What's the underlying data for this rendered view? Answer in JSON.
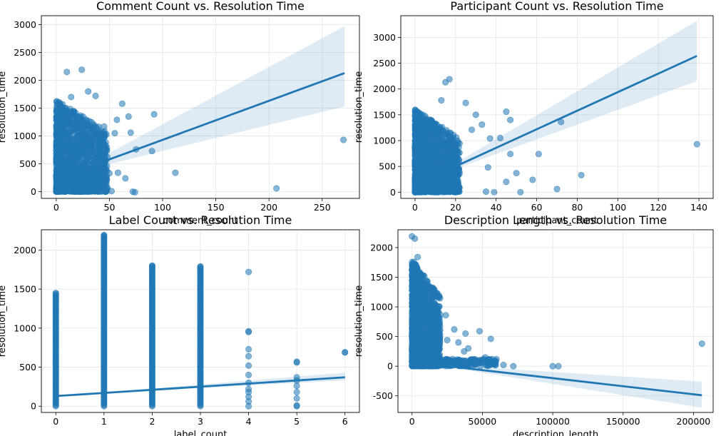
{
  "chart_data": [
    {
      "type": "scatter",
      "title": "Comment Count vs. Resolution Time",
      "xlabel": "comment_count",
      "ylabel": "resolution_time",
      "xlim": [
        -14,
        285
      ],
      "ylim": [
        -120,
        3160
      ],
      "xticks": [
        0,
        50,
        100,
        150,
        200,
        250
      ],
      "yticks": [
        0,
        500,
        1000,
        1500,
        2000,
        2500,
        3000
      ],
      "grid": true,
      "color": "#1f77b4",
      "cluster": {
        "x_max": 48,
        "y_max": 1650
      },
      "points": [
        [
          0,
          0
        ],
        [
          10,
          2150
        ],
        [
          24,
          2190
        ],
        [
          30,
          1800
        ],
        [
          37,
          1720
        ],
        [
          14,
          1700
        ],
        [
          62,
          1580
        ],
        [
          68,
          1350
        ],
        [
          57,
          1290
        ],
        [
          45,
          1170
        ],
        [
          40,
          970
        ],
        [
          55,
          1050
        ],
        [
          70,
          1060
        ],
        [
          92,
          1390
        ],
        [
          75,
          760
        ],
        [
          90,
          730
        ],
        [
          48,
          620
        ],
        [
          58,
          340
        ],
        [
          65,
          240
        ],
        [
          72,
          0
        ],
        [
          74,
          -10
        ],
        [
          112,
          340
        ],
        [
          207,
          60
        ],
        [
          270,
          930
        ],
        [
          50,
          330
        ],
        [
          52,
          10
        ],
        [
          44,
          20
        ]
      ],
      "regression": {
        "x": [
          0,
          271
        ],
        "y": [
          230,
          2130
        ],
        "ci_lower_end": 1530,
        "ci_upper_end": 2970
      }
    },
    {
      "type": "scatter",
      "title": "Participant Count vs. Resolution Time",
      "xlabel": "participant_count",
      "ylabel": "resolution_time",
      "xlim": [
        -7,
        147
      ],
      "ylim": [
        -120,
        3420
      ],
      "xticks": [
        0,
        20,
        40,
        60,
        80,
        100,
        120,
        140
      ],
      "yticks": [
        0,
        500,
        1000,
        1500,
        2000,
        2500,
        3000
      ],
      "grid": true,
      "color": "#1f77b4",
      "cluster": {
        "x_max": 22,
        "y_max": 1600
      },
      "points": [
        [
          0,
          0
        ],
        [
          15,
          2130
        ],
        [
          17,
          2190
        ],
        [
          13,
          1780
        ],
        [
          25,
          1730
        ],
        [
          30,
          1500
        ],
        [
          45,
          1560
        ],
        [
          47,
          1400
        ],
        [
          33,
          1310
        ],
        [
          28,
          1210
        ],
        [
          37,
          1040
        ],
        [
          42,
          1050
        ],
        [
          47,
          740
        ],
        [
          61,
          740
        ],
        [
          72,
          1360
        ],
        [
          70,
          60
        ],
        [
          82,
          330
        ],
        [
          139,
          930
        ],
        [
          50,
          370
        ],
        [
          52,
          0
        ],
        [
          58,
          240
        ],
        [
          45,
          200
        ],
        [
          36,
          480
        ],
        [
          39,
          0
        ],
        [
          35,
          10
        ]
      ],
      "regression": {
        "x": [
          0,
          139
        ],
        "y": [
          140,
          2640
        ],
        "ci_lower_end": 2150,
        "ci_upper_end": 3320
      }
    },
    {
      "type": "scatter",
      "title": "Label Count vs. Resolution Time",
      "xlabel": "label_count",
      "ylabel": "resolution_time",
      "xlim": [
        -0.3,
        6.3
      ],
      "ylim": [
        -80,
        2260
      ],
      "xticks": [
        0,
        1,
        2,
        3,
        4,
        5,
        6
      ],
      "yticks": [
        0,
        500,
        1000,
        1500,
        2000
      ],
      "grid": true,
      "color": "#1f77b4",
      "columns": [
        {
          "x": 0,
          "max": 1450
        },
        {
          "x": 1,
          "max": 2190
        },
        {
          "x": 2,
          "max": 1800
        },
        {
          "x": 3,
          "max": 1790
        },
        {
          "x": 4,
          "max": 1720,
          "sparse": [
            950,
            960,
            730,
            640,
            520,
            400,
            300,
            220,
            180,
            120,
            60,
            0
          ]
        },
        {
          "x": 5,
          "max": 570,
          "sparse": [
            560,
            370,
            330,
            260,
            180,
            100,
            10,
            0
          ]
        },
        {
          "x": 6,
          "max": 690,
          "sparse": [
            690
          ]
        }
      ],
      "regression": {
        "x": [
          0,
          6
        ],
        "y": [
          130,
          370
        ],
        "ci_lower_end": 330,
        "ci_upper_end": 430
      }
    },
    {
      "type": "scatter",
      "title": "Description Length vs. Resolution Time",
      "xlabel": "description_length",
      "ylabel": "resolution_time",
      "xlim": [
        -10000,
        214000
      ],
      "ylim": [
        -780,
        2300
      ],
      "xticks": [
        0,
        50000,
        100000,
        150000,
        200000
      ],
      "yticks": [
        -500,
        0,
        500,
        1000,
        1500,
        2000
      ],
      "grid": true,
      "color": "#1f77b4",
      "cluster": {
        "x_max": 20000,
        "y_max": 1800
      },
      "points": [
        [
          0,
          2190
        ],
        [
          2000,
          2150
        ],
        [
          4000,
          1840
        ],
        [
          7000,
          1500
        ],
        [
          9000,
          1300
        ],
        [
          12000,
          1150
        ],
        [
          15000,
          960
        ],
        [
          18000,
          1230
        ],
        [
          24000,
          860
        ],
        [
          30000,
          620
        ],
        [
          38000,
          550
        ],
        [
          48000,
          590
        ],
        [
          56000,
          460
        ],
        [
          20000,
          610
        ],
        [
          25000,
          440
        ],
        [
          33000,
          400
        ],
        [
          37000,
          250
        ],
        [
          44000,
          100
        ],
        [
          52000,
          150
        ],
        [
          60000,
          120
        ],
        [
          72000,
          0
        ],
        [
          100000,
          0
        ],
        [
          104000,
          0
        ],
        [
          206000,
          380
        ],
        [
          65000,
          20
        ],
        [
          40000,
          300
        ]
      ],
      "tail": {
        "x_max": 60000,
        "y_at_x_max": 0
      },
      "regression": {
        "x": [
          0,
          206000
        ],
        "y": [
          70,
          -490
        ],
        "ci_lower_end": -700,
        "ci_upper_end": -260
      }
    }
  ]
}
